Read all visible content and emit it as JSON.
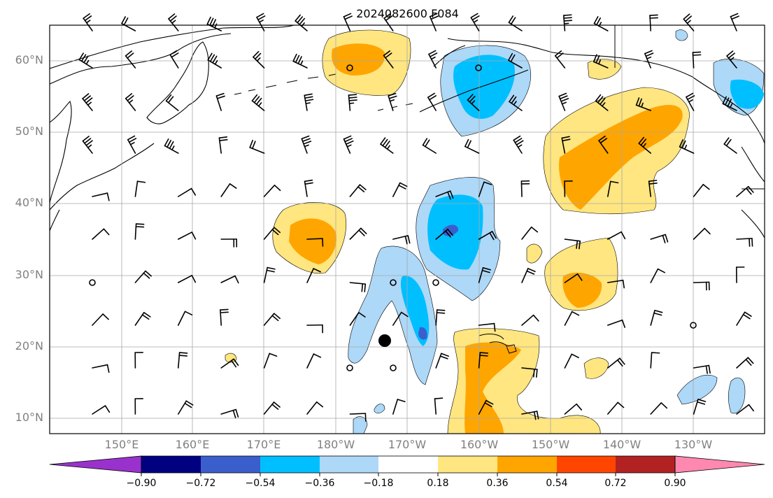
{
  "title": "2024082600 F084",
  "map": {
    "region": "North Pacific",
    "lat_labels": [
      "10°N",
      "20°N",
      "30°N",
      "40°N",
      "50°N",
      "60°N"
    ],
    "lon_labels": [
      "150°E",
      "160°E",
      "170°E",
      "180°W",
      "170°W",
      "160°W",
      "150°W",
      "140°W",
      "130°W"
    ],
    "wind_barbs": "shown",
    "contour_fill": "shown"
  },
  "colorbar": {
    "tick_labels": [
      "−0.90",
      "−0.72",
      "−0.54",
      "−0.36",
      "−0.18",
      "0.18",
      "0.36",
      "0.54",
      "0.72",
      "0.90"
    ],
    "colors": [
      "#9932cc",
      "#000080",
      "#3a5fcd",
      "#00bfff",
      "#add8f8",
      "#ffffff",
      "#ffe680",
      "#ffa500",
      "#ff4500",
      "#b22222",
      "#ff88b0"
    ],
    "extend": "both"
  }
}
